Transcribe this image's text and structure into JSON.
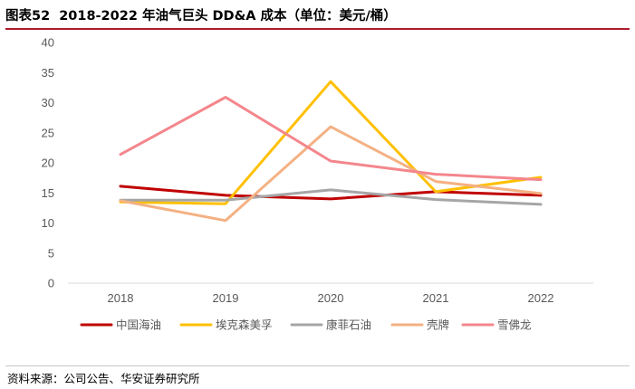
{
  "figure": {
    "label": "图表52",
    "title": "2018-2022 年油气巨头 DD&A 成本（单位：美元/桶）"
  },
  "source_text": "资料来源：公司公告、华安证券研究所",
  "colors": {
    "header_rule": "#b01c2e",
    "axis_text": "#595959",
    "axis_line": "#d9d9d9"
  },
  "chart_data": {
    "type": "line",
    "title": "2018-2022 年油气巨头 DD&A 成本（单位：美元/桶）",
    "xlabel": "",
    "ylabel": "",
    "x": [
      "2018",
      "2019",
      "2020",
      "2021",
      "2022"
    ],
    "ylim": [
      0,
      40
    ],
    "yticks": [
      "0",
      "5",
      "10",
      "15",
      "20",
      "25",
      "30",
      "35",
      "40"
    ],
    "grid": false,
    "legend_position": "bottom",
    "series": [
      {
        "name": "中国海油",
        "color": "#c00000",
        "values": [
          16.1,
          14.6,
          14.0,
          15.2,
          14.6
        ]
      },
      {
        "name": "埃克森美孚",
        "color": "#ffc000",
        "values": [
          13.5,
          13.2,
          33.5,
          15.2,
          17.6
        ]
      },
      {
        "name": "康菲石油",
        "color": "#a6a6a6",
        "values": [
          13.8,
          13.8,
          15.5,
          13.9,
          13.1
        ]
      },
      {
        "name": "壳牌",
        "color": "#f4b183",
        "values": [
          13.7,
          10.4,
          26.0,
          16.9,
          14.9
        ]
      },
      {
        "name": "雪佛龙",
        "color": "#f4868c",
        "values": [
          21.4,
          30.9,
          20.3,
          18.1,
          17.2
        ]
      }
    ]
  }
}
